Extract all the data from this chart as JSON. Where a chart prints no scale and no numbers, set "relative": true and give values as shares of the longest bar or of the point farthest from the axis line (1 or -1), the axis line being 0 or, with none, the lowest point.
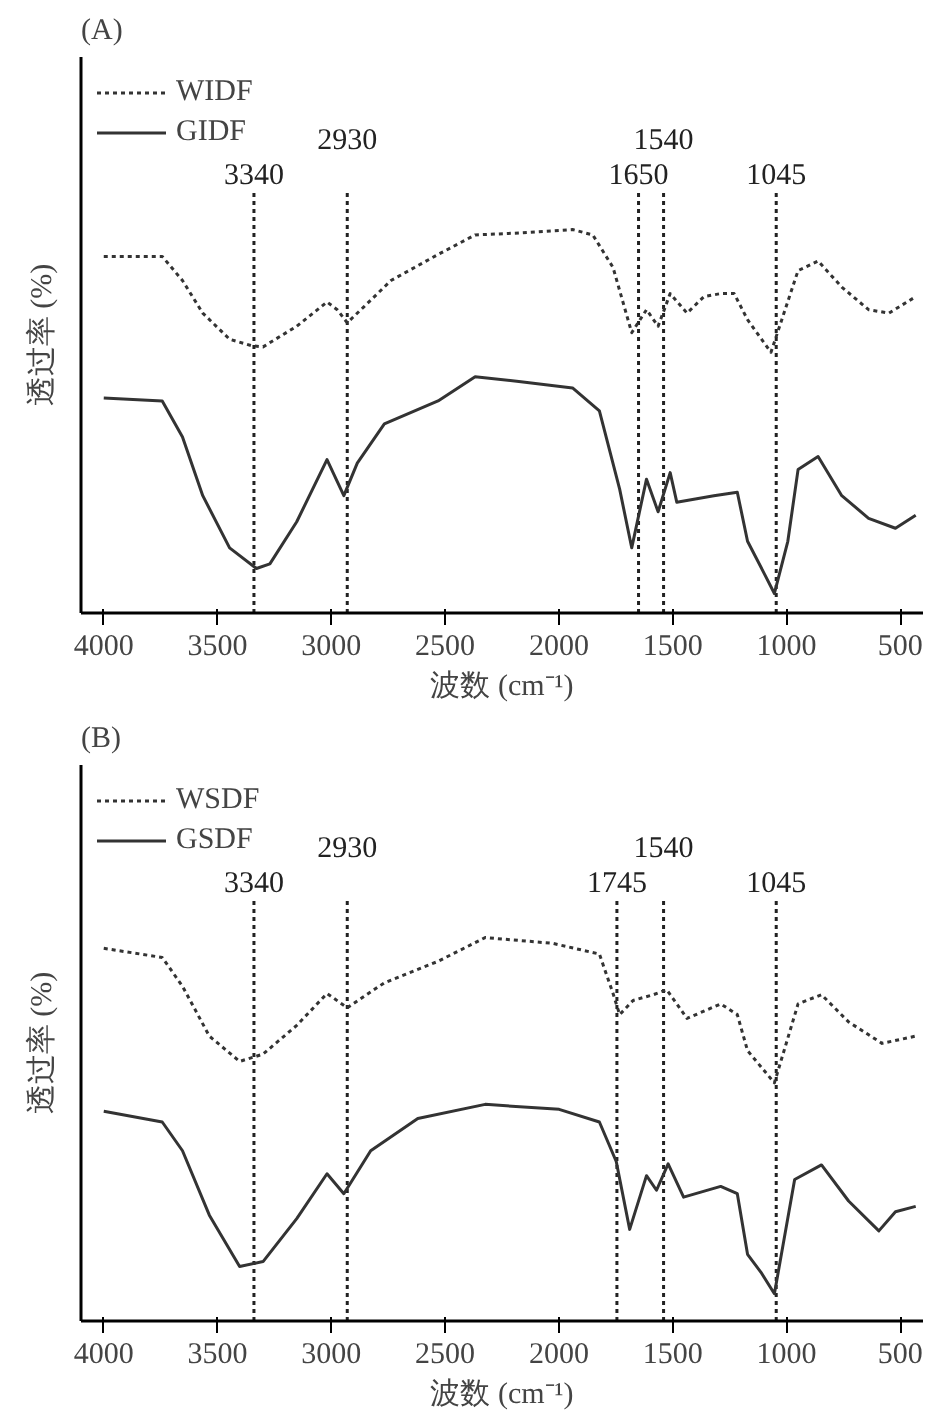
{
  "chart_data": [
    {
      "type": "line",
      "title": "(A)",
      "xlabel": "波数 (cm⁻¹)",
      "ylabel": "透过率 (%)",
      "relative": true,
      "legend": "top left",
      "tick_labels": "x",
      "grid": false,
      "xlim": [
        4100,
        400
      ],
      "xticks": [
        4000,
        3500,
        3000,
        2500,
        2000,
        1500,
        1000,
        500
      ],
      "series": [
        {
          "name": "WIDF",
          "color": "#333333",
          "line_style": "dotted",
          "x": [
            4000,
            3743,
            3654,
            3565,
            3447,
            3350,
            3300,
            3152,
            3019,
            2974,
            2930,
            2856,
            2738,
            2531,
            2368,
            2176,
            1940,
            1851,
            1762,
            1680,
            1615,
            1564,
            1511,
            1437,
            1363,
            1289,
            1230,
            1171,
            1068,
            949,
            861,
            757,
            639,
            550,
            432
          ],
          "values": [
            0.93,
            0.93,
            0.867,
            0.782,
            0.714,
            0.697,
            0.694,
            0.748,
            0.811,
            0.791,
            0.757,
            0.799,
            0.867,
            0.935,
            0.986,
            0.991,
            1.0,
            0.986,
            0.901,
            0.731,
            0.791,
            0.748,
            0.833,
            0.782,
            0.825,
            0.833,
            0.833,
            0.765,
            0.68,
            0.893,
            0.918,
            0.85,
            0.791,
            0.782,
            0.825
          ]
        },
        {
          "name": "GIDF",
          "color": "#333333",
          "line_style": "solid",
          "x": [
            4000,
            3743,
            3654,
            3565,
            3447,
            3329,
            3270,
            3152,
            3019,
            2945,
            2886,
            2767,
            2531,
            2368,
            2176,
            1940,
            1822,
            1733,
            1680,
            1615,
            1564,
            1511,
            1482,
            1319,
            1216,
            1171,
            1097,
            1053,
            994,
            949,
            861,
            757,
            639,
            521,
            432
          ],
          "values": [
            0.561,
            0.553,
            0.459,
            0.306,
            0.17,
            0.116,
            0.128,
            0.238,
            0.4,
            0.306,
            0.391,
            0.493,
            0.553,
            0.616,
            0.604,
            0.587,
            0.527,
            0.323,
            0.17,
            0.349,
            0.264,
            0.366,
            0.289,
            0.306,
            0.315,
            0.187,
            0.102,
            0.051,
            0.187,
            0.374,
            0.408,
            0.306,
            0.247,
            0.221,
            0.255
          ]
        }
      ],
      "ref_lines": [
        {
          "axis": "x",
          "value": 3340,
          "line_style": "dotted",
          "label": "3340"
        },
        {
          "axis": "x",
          "value": 2930,
          "line_style": "dotted",
          "label": "2930"
        },
        {
          "axis": "x",
          "value": 1650,
          "line_style": "dotted",
          "label": "1650"
        },
        {
          "axis": "x",
          "value": 1540,
          "line_style": "dotted",
          "label": "1540"
        },
        {
          "axis": "x",
          "value": 1045,
          "line_style": "dotted",
          "label": "1045"
        }
      ]
    },
    {
      "type": "line",
      "title": "(B)",
      "xlabel": "波数 (cm⁻¹)",
      "ylabel": "透过率 (%)",
      "relative": true,
      "legend": "top left",
      "tick_labels": "x",
      "grid": false,
      "xlim": [
        4100,
        400
      ],
      "xticks": [
        4000,
        3500,
        3000,
        2500,
        2000,
        1500,
        1000,
        500
      ],
      "series": [
        {
          "name": "WSDF",
          "color": "#333333",
          "line_style": "dotted",
          "x": [
            4000,
            3743,
            3654,
            3536,
            3403,
            3300,
            3152,
            3019,
            2930,
            2767,
            2531,
            2324,
            2028,
            1822,
            1762,
            1733,
            1674,
            1585,
            1526,
            1437,
            1289,
            1216,
            1171,
            1053,
            949,
            846,
            727,
            580,
            432
          ],
          "values": [
            0.972,
            0.948,
            0.873,
            0.743,
            0.677,
            0.696,
            0.771,
            0.854,
            0.817,
            0.882,
            0.938,
            1.0,
            0.985,
            0.957,
            0.854,
            0.799,
            0.836,
            0.851,
            0.864,
            0.789,
            0.827,
            0.799,
            0.705,
            0.621,
            0.827,
            0.851,
            0.78,
            0.724,
            0.743
          ]
        },
        {
          "name": "GSDF",
          "color": "#333333",
          "line_style": "solid",
          "x": [
            4000,
            3743,
            3654,
            3536,
            3403,
            3300,
            3152,
            3019,
            2945,
            2827,
            2620,
            2324,
            1999,
            1822,
            1748,
            1689,
            1615,
            1571,
            1520,
            1452,
            1289,
            1216,
            1171,
            1112,
            1053,
            964,
            846,
            727,
            594,
            521,
            432
          ],
          "values": [
            0.547,
            0.519,
            0.444,
            0.276,
            0.142,
            0.155,
            0.267,
            0.384,
            0.332,
            0.444,
            0.528,
            0.565,
            0.552,
            0.519,
            0.416,
            0.239,
            0.379,
            0.341,
            0.41,
            0.323,
            0.351,
            0.332,
            0.174,
            0.127,
            0.071,
            0.369,
            0.407,
            0.313,
            0.235,
            0.285,
            0.299
          ]
        }
      ],
      "ref_lines": [
        {
          "axis": "x",
          "value": 3340,
          "line_style": "dotted",
          "label": "3340"
        },
        {
          "axis": "x",
          "value": 2930,
          "line_style": "dotted",
          "label": "2930"
        },
        {
          "axis": "x",
          "value": 1745,
          "line_style": "dotted",
          "label": "1745"
        },
        {
          "axis": "x",
          "value": 1540,
          "line_style": "dotted",
          "label": "1540"
        },
        {
          "axis": "x",
          "value": 1045,
          "line_style": "dotted",
          "label": "1045"
        }
      ]
    }
  ]
}
